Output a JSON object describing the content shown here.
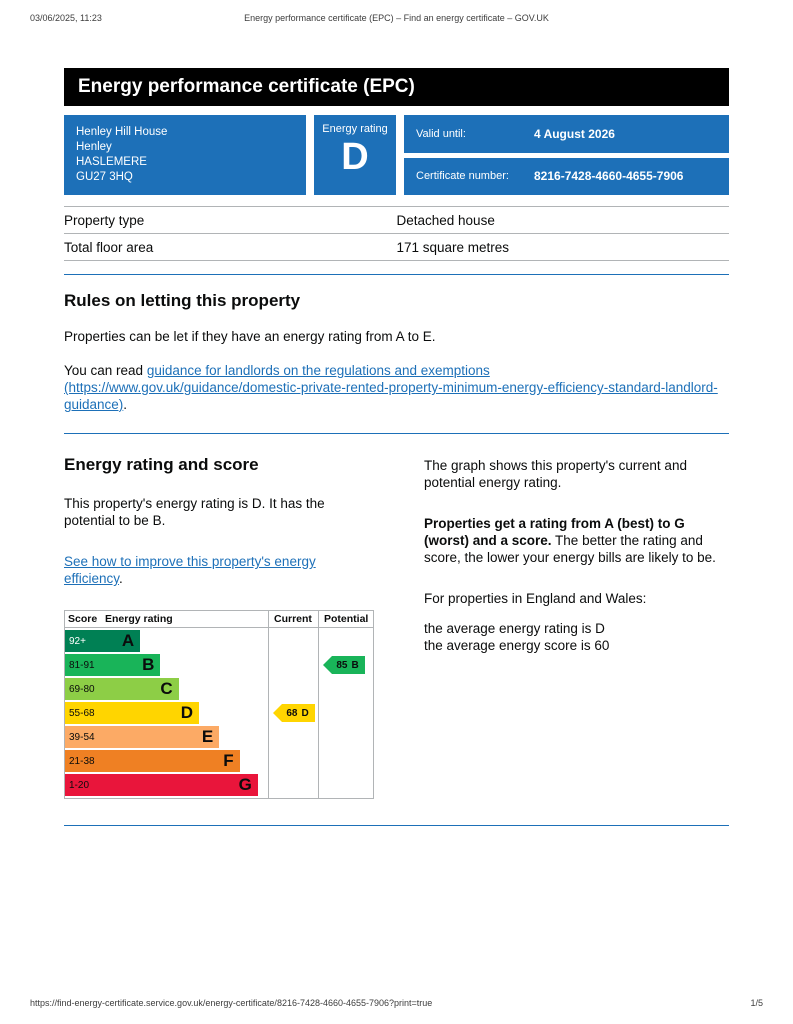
{
  "print_header": {
    "datetime": "03/06/2025, 11:23",
    "title": "Energy performance certificate (EPC) – Find an energy certificate – GOV.UK"
  },
  "banner": {
    "title": "Energy performance certificate (EPC)"
  },
  "summary": {
    "address_lines": [
      "Henley Hill House",
      "Henley",
      "HASLEMERE",
      "GU27 3HQ"
    ],
    "rating_box_label": "Energy rating",
    "rating_box_value": "D",
    "valid_until_label": "Valid until:",
    "valid_until_value": "4 August 2026",
    "certificate_number_label": "Certificate number:",
    "certificate_number_value": "8216-7428-4660-4655-7906"
  },
  "property_details": {
    "rows": [
      {
        "label": "Property type",
        "value": "Detached house"
      },
      {
        "label": "Total floor area",
        "value": "171 square metres"
      }
    ]
  },
  "letting_rules": {
    "heading": "Rules on letting this property",
    "intro": "Properties can be let if they have an energy rating from A to E.",
    "guidance_prefix": "You can read ",
    "guidance_link": "guidance for landlords on the regulations and exemptions (https://www.gov.uk/guidance/domestic-private-rented-property-minimum-energy-efficiency-standard-landlord-guidance)",
    "guidance_suffix": "."
  },
  "rating_section": {
    "heading": "Energy rating and score",
    "intro": "This property's energy rating is D. It has the potential to be B.",
    "improve_link": "See how to improve this property's energy efficiency",
    "improve_suffix": ".",
    "graph_caption": "The graph shows this property's current and potential energy rating.",
    "ratings_bold": "Properties get a rating from A (best) to G (worst) and a score.",
    "ratings_rest": " The better the rating and score, the lower your energy bills are likely to be.",
    "england_wales": "For properties in England and Wales:",
    "average_rating": "the average energy rating is D",
    "average_score": "the average energy score is 60"
  },
  "chart_data": {
    "type": "bar",
    "title": "Energy rating and score bands",
    "headers": {
      "score": "Score",
      "rating": "Energy rating",
      "current": "Current",
      "potential": "Potential"
    },
    "bands": [
      {
        "score": "92+",
        "letter": "A",
        "color": "#008054",
        "score_color": "#ffffff",
        "width_pct": 37
      },
      {
        "score": "81-91",
        "letter": "B",
        "color": "#19b459",
        "score_color": "#0b0c0c",
        "width_pct": 47
      },
      {
        "score": "69-80",
        "letter": "C",
        "color": "#8dce46",
        "score_color": "#0b0c0c",
        "width_pct": 56
      },
      {
        "score": "55-68",
        "letter": "D",
        "color": "#ffd500",
        "score_color": "#0b0c0c",
        "width_pct": 66
      },
      {
        "score": "39-54",
        "letter": "E",
        "color": "#fcaa65",
        "score_color": "#0b0c0c",
        "width_pct": 76
      },
      {
        "score": "21-38",
        "letter": "F",
        "color": "#ef8023",
        "score_color": "#0b0c0c",
        "width_pct": 86
      },
      {
        "score": "1-20",
        "letter": "G",
        "color": "#e9153b",
        "score_color": "#0b0c0c",
        "width_pct": 95
      }
    ],
    "current": {
      "score": 68,
      "letter": "D",
      "band_index": 3,
      "color": "#ffd500"
    },
    "potential": {
      "score": 85,
      "letter": "B",
      "band_index": 1,
      "color": "#19b459"
    }
  },
  "footer": {
    "url": "https://find-energy-certificate.service.gov.uk/energy-certificate/8216-7428-4660-4655-7906?print=true",
    "page_indicator": "1/5"
  },
  "colors": {
    "accent_blue": "#1d70b8",
    "banner_bg": "#000000",
    "border_grey": "#b1b4b6"
  }
}
